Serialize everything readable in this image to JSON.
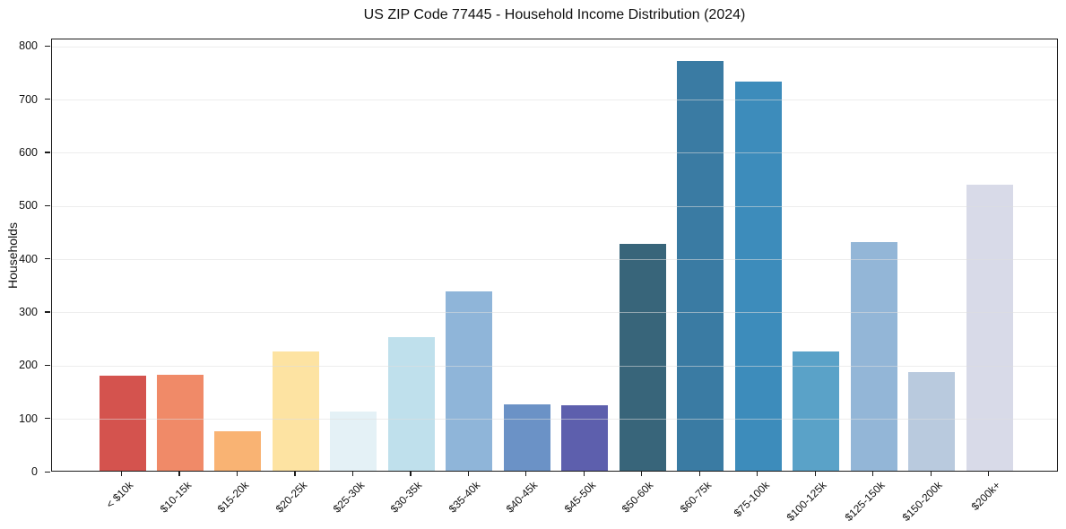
{
  "chart_data": {
    "type": "bar",
    "title": "US ZIP Code 77445 - Household Income Distribution (2024)",
    "xlabel": "",
    "ylabel": "Households",
    "categories": [
      "< $10k",
      "$10-15k",
      "$15-20k",
      "$20-25k",
      "$25-30k",
      "$30-35k",
      "$35-40k",
      "$40-45k",
      "$45-50k",
      "$50-60k",
      "$60-75k",
      "$75-100k",
      "$100-125k",
      "$125-150k",
      "$150-200k",
      "$200k+"
    ],
    "values": [
      178,
      180,
      75,
      225,
      112,
      251,
      337,
      125,
      123,
      427,
      771,
      732,
      224,
      430,
      185,
      538
    ],
    "bar_colors": [
      "#d4534e",
      "#f08a68",
      "#f9b373",
      "#fde3a2",
      "#e4f1f6",
      "#bfe0ec",
      "#8fb5d9",
      "#6b92c6",
      "#5d5fad",
      "#38657a",
      "#3a7ba3",
      "#3d8cbb",
      "#5aa2c8",
      "#93b6d7",
      "#b9cade",
      "#d8dae8"
    ],
    "yticks": [
      0,
      100,
      200,
      300,
      400,
      500,
      600,
      700,
      800
    ],
    "ylim": [
      0,
      814
    ],
    "grid": "horizontal",
    "legend_position": "none",
    "background_color": "#ffffff",
    "text_color": "#111111",
    "grid_color": "#dedede",
    "spine_color": "#1c1c1c"
  }
}
